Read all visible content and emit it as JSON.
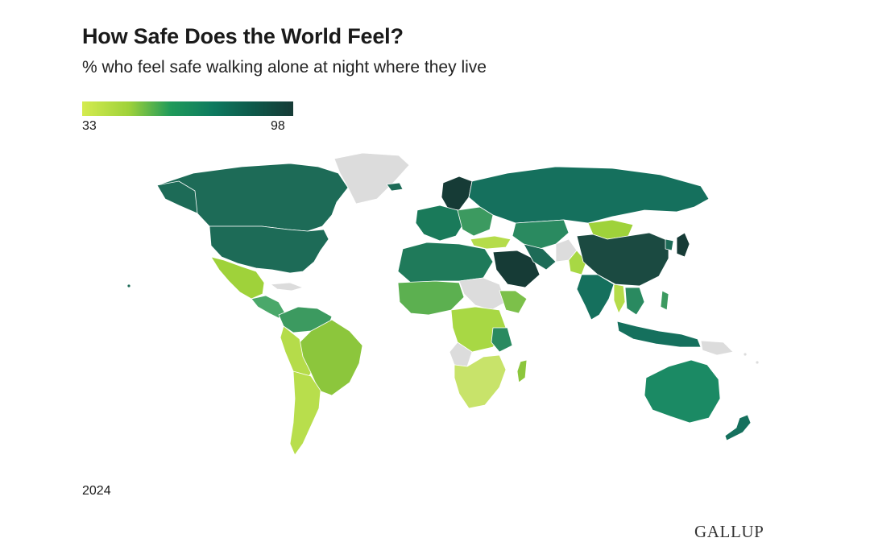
{
  "header": {
    "title": "How Safe Does the World Feel?",
    "subtitle": "% who feel safe walking alone at night where they live"
  },
  "legend": {
    "min_label": "33",
    "max_label": "98",
    "scale_colors": [
      "#d4eb4f",
      "#9fd23a",
      "#1f9a5a",
      "#0d7a5f",
      "#0e5a4b",
      "#163b36"
    ]
  },
  "map": {
    "no_data_color": "#dcdcdc",
    "regions": [
      {
        "name": "Canada",
        "level": "dark-teal"
      },
      {
        "name": "United States",
        "level": "dark-teal"
      },
      {
        "name": "Mexico",
        "level": "light-green"
      },
      {
        "name": "Brazil",
        "level": "yellow-green"
      },
      {
        "name": "Argentina",
        "level": "yellow-green"
      },
      {
        "name": "Russia",
        "level": "teal"
      },
      {
        "name": "China",
        "level": "darkest"
      },
      {
        "name": "Saudi Arabia",
        "level": "darkest"
      },
      {
        "name": "India",
        "level": "teal"
      },
      {
        "name": "Australia",
        "level": "teal"
      },
      {
        "name": "Greenland",
        "level": "no-data"
      }
    ]
  },
  "footer": {
    "year": "2024",
    "brand": "GALLUP"
  }
}
